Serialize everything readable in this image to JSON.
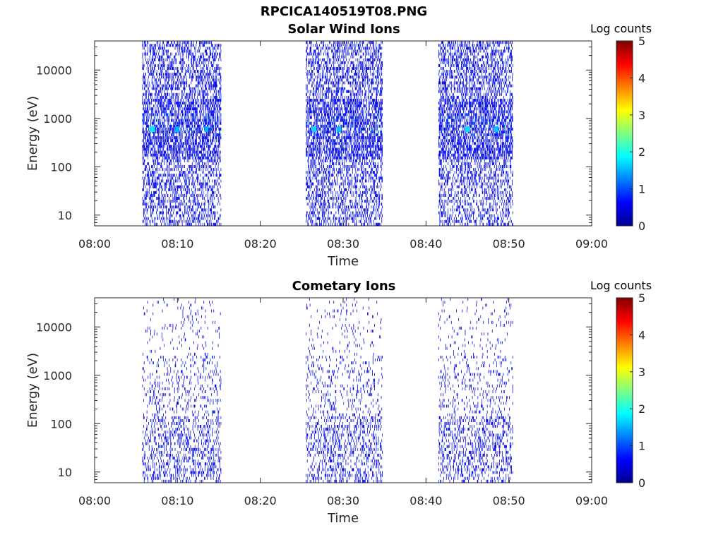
{
  "figure": {
    "title": "RPCICA140519T08.PNG"
  },
  "chart_data": [
    {
      "type": "heatmap",
      "title": "Solar Wind Ions",
      "xlabel": "Time",
      "ylabel": "Energy (eV)",
      "x_ticks": [
        "08:00",
        "08:10",
        "08:20",
        "08:30",
        "08:40",
        "08:50",
        "09:00"
      ],
      "xlim": [
        "08:00",
        "09:00"
      ],
      "y_scale": "log",
      "y_ticks": [
        10,
        100,
        1000,
        10000
      ],
      "y_tick_labels": [
        "10",
        "100",
        "1000",
        "10000"
      ],
      "ylim": [
        6,
        40000
      ],
      "colorbar": {
        "label": "Log counts",
        "range": [
          0,
          5
        ],
        "ticks": [
          "0",
          "1",
          "2",
          "3",
          "4",
          "5"
        ],
        "colormap": "jet"
      },
      "active_intervals": [
        {
          "start": "08:05:45",
          "end": "08:15:15"
        },
        {
          "start": "08:25:30",
          "end": "08:34:45"
        },
        {
          "start": "08:41:30",
          "end": "08:50:30"
        }
      ],
      "dominant_level": "~0.3",
      "peak_features": [
        {
          "time": "08:07:00",
          "energy_ev": 600,
          "log_counts": 1.8
        },
        {
          "time": "08:10:00",
          "energy_ev": 600,
          "log_counts": 1.5
        },
        {
          "time": "08:13:30",
          "energy_ev": 600,
          "log_counts": 1.5
        },
        {
          "time": "08:26:30",
          "energy_ev": 600,
          "log_counts": 1.7
        },
        {
          "time": "08:29:30",
          "energy_ev": 600,
          "log_counts": 1.6
        },
        {
          "time": "08:45:00",
          "energy_ev": 600,
          "log_counts": 1.7
        },
        {
          "time": "08:48:30",
          "energy_ev": 600,
          "log_counts": 1.6
        }
      ]
    },
    {
      "type": "heatmap",
      "title": "Cometary Ions",
      "xlabel": "Time",
      "ylabel": "Energy (eV)",
      "x_ticks": [
        "08:00",
        "08:10",
        "08:20",
        "08:30",
        "08:40",
        "08:50",
        "09:00"
      ],
      "xlim": [
        "08:00",
        "09:00"
      ],
      "y_scale": "log",
      "y_ticks": [
        10,
        100,
        1000,
        10000
      ],
      "y_tick_labels": [
        "10",
        "100",
        "1000",
        "10000"
      ],
      "ylim": [
        6,
        40000
      ],
      "colorbar": {
        "label": "Log counts",
        "range": [
          0,
          5
        ],
        "ticks": [
          "0",
          "1",
          "2",
          "3",
          "4",
          "5"
        ],
        "colormap": "jet"
      },
      "active_intervals": [
        {
          "start": "08:05:45",
          "end": "08:15:15"
        },
        {
          "start": "08:25:30",
          "end": "08:34:45"
        },
        {
          "start": "08:41:30",
          "end": "08:50:30"
        }
      ],
      "dominant_level": "~0.3",
      "peak_features": []
    }
  ]
}
